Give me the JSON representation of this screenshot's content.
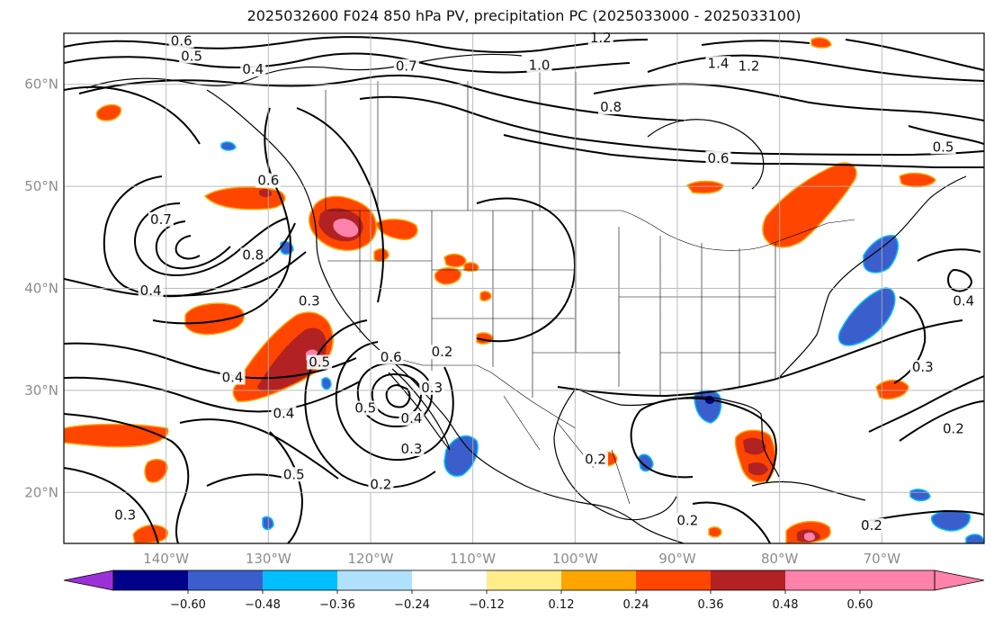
{
  "title": "2025032600 F024 850 hPa PV, precipitation PC (2025033000 - 2025033100)",
  "map": {
    "projection": "PlateCarree",
    "lon_range": [
      -150,
      -60
    ],
    "lat_range": [
      15,
      65
    ],
    "gridlines": true,
    "lat_ticks": [
      {
        "value": 20,
        "label": "20°N"
      },
      {
        "value": 30,
        "label": "30°N"
      },
      {
        "value": 40,
        "label": "40°N"
      },
      {
        "value": 50,
        "label": "50°N"
      },
      {
        "value": 60,
        "label": "60°N"
      }
    ],
    "lon_ticks": [
      {
        "value": -140,
        "label": "140°W"
      },
      {
        "value": -130,
        "label": "130°W"
      },
      {
        "value": -120,
        "label": "120°W"
      },
      {
        "value": -110,
        "label": "110°W"
      },
      {
        "value": -100,
        "label": "100°W"
      },
      {
        "value": -90,
        "label": "90°W"
      },
      {
        "value": -80,
        "label": "80°W"
      },
      {
        "value": -70,
        "label": "70°W"
      }
    ],
    "pv_contour_labels": [
      {
        "lon": -138.5,
        "lat": 64.0,
        "text": "0.6"
      },
      {
        "lon": -137.5,
        "lat": 62.5,
        "text": "0.5"
      },
      {
        "lon": -131.5,
        "lat": 61.2,
        "text": "0.4"
      },
      {
        "lon": -116.5,
        "lat": 61.5,
        "text": "0.7"
      },
      {
        "lon": -103.5,
        "lat": 61.6,
        "text": "1.0"
      },
      {
        "lon": -97.5,
        "lat": 64.3,
        "text": "1.2"
      },
      {
        "lon": -86.0,
        "lat": 61.8,
        "text": "1.4"
      },
      {
        "lon": -83.0,
        "lat": 61.5,
        "text": "1.2"
      },
      {
        "lon": -96.5,
        "lat": 57.5,
        "text": "0.8"
      },
      {
        "lon": -86.0,
        "lat": 52.5,
        "text": "0.6"
      },
      {
        "lon": -64.0,
        "lat": 53.6,
        "text": "0.5"
      },
      {
        "lon": -130.0,
        "lat": 50.3,
        "text": "0.6"
      },
      {
        "lon": -140.5,
        "lat": 46.5,
        "text": "0.7"
      },
      {
        "lon": -131.5,
        "lat": 43.0,
        "text": "0.8"
      },
      {
        "lon": -141.5,
        "lat": 39.5,
        "text": "0.4"
      },
      {
        "lon": -126.0,
        "lat": 38.5,
        "text": "0.3"
      },
      {
        "lon": -125.0,
        "lat": 32.5,
        "text": "0.5"
      },
      {
        "lon": -133.5,
        "lat": 31.0,
        "text": "0.4"
      },
      {
        "lon": -128.5,
        "lat": 27.5,
        "text": "0.4"
      },
      {
        "lon": -118.0,
        "lat": 33.0,
        "text": "0.6"
      },
      {
        "lon": -113.0,
        "lat": 33.5,
        "text": "0.2"
      },
      {
        "lon": -114.0,
        "lat": 30.0,
        "text": "0.3"
      },
      {
        "lon": -116.0,
        "lat": 27.0,
        "text": "0.4"
      },
      {
        "lon": -120.5,
        "lat": 28.0,
        "text": "0.5"
      },
      {
        "lon": -116.0,
        "lat": 24.0,
        "text": "0.3"
      },
      {
        "lon": -127.5,
        "lat": 21.5,
        "text": "0.5"
      },
      {
        "lon": -119.0,
        "lat": 20.5,
        "text": "0.2"
      },
      {
        "lon": -144.0,
        "lat": 17.5,
        "text": "0.3"
      },
      {
        "lon": -98.0,
        "lat": 23.0,
        "text": "0.2"
      },
      {
        "lon": -89.0,
        "lat": 17.0,
        "text": "0.2"
      },
      {
        "lon": -71.0,
        "lat": 16.5,
        "text": "0.2"
      },
      {
        "lon": -63.0,
        "lat": 26.0,
        "text": "0.2"
      },
      {
        "lon": -66.0,
        "lat": 32.0,
        "text": "0.3"
      },
      {
        "lon": -62.0,
        "lat": 38.5,
        "text": "0.4"
      }
    ]
  },
  "colorbar": {
    "extend": "both",
    "bounds": [
      -0.72,
      -0.6,
      -0.48,
      -0.36,
      -0.24,
      -0.12,
      0.12,
      0.24,
      0.36,
      0.48,
      0.6,
      0.72
    ],
    "colors": [
      "#9b30d9",
      "#00008b",
      "#3a5fcd",
      "#00bfff",
      "#b0e2ff",
      "#ffffff",
      "#ffec8b",
      "#ffa500",
      "#ff4500",
      "#b22222",
      "#ff82ab",
      "#ff82ab"
    ],
    "tick_labels": [
      "-0.60",
      "-0.48",
      "-0.36",
      "-0.24",
      "-0.12",
      "0.12",
      "0.24",
      "0.36",
      "0.48",
      "0.60"
    ]
  }
}
